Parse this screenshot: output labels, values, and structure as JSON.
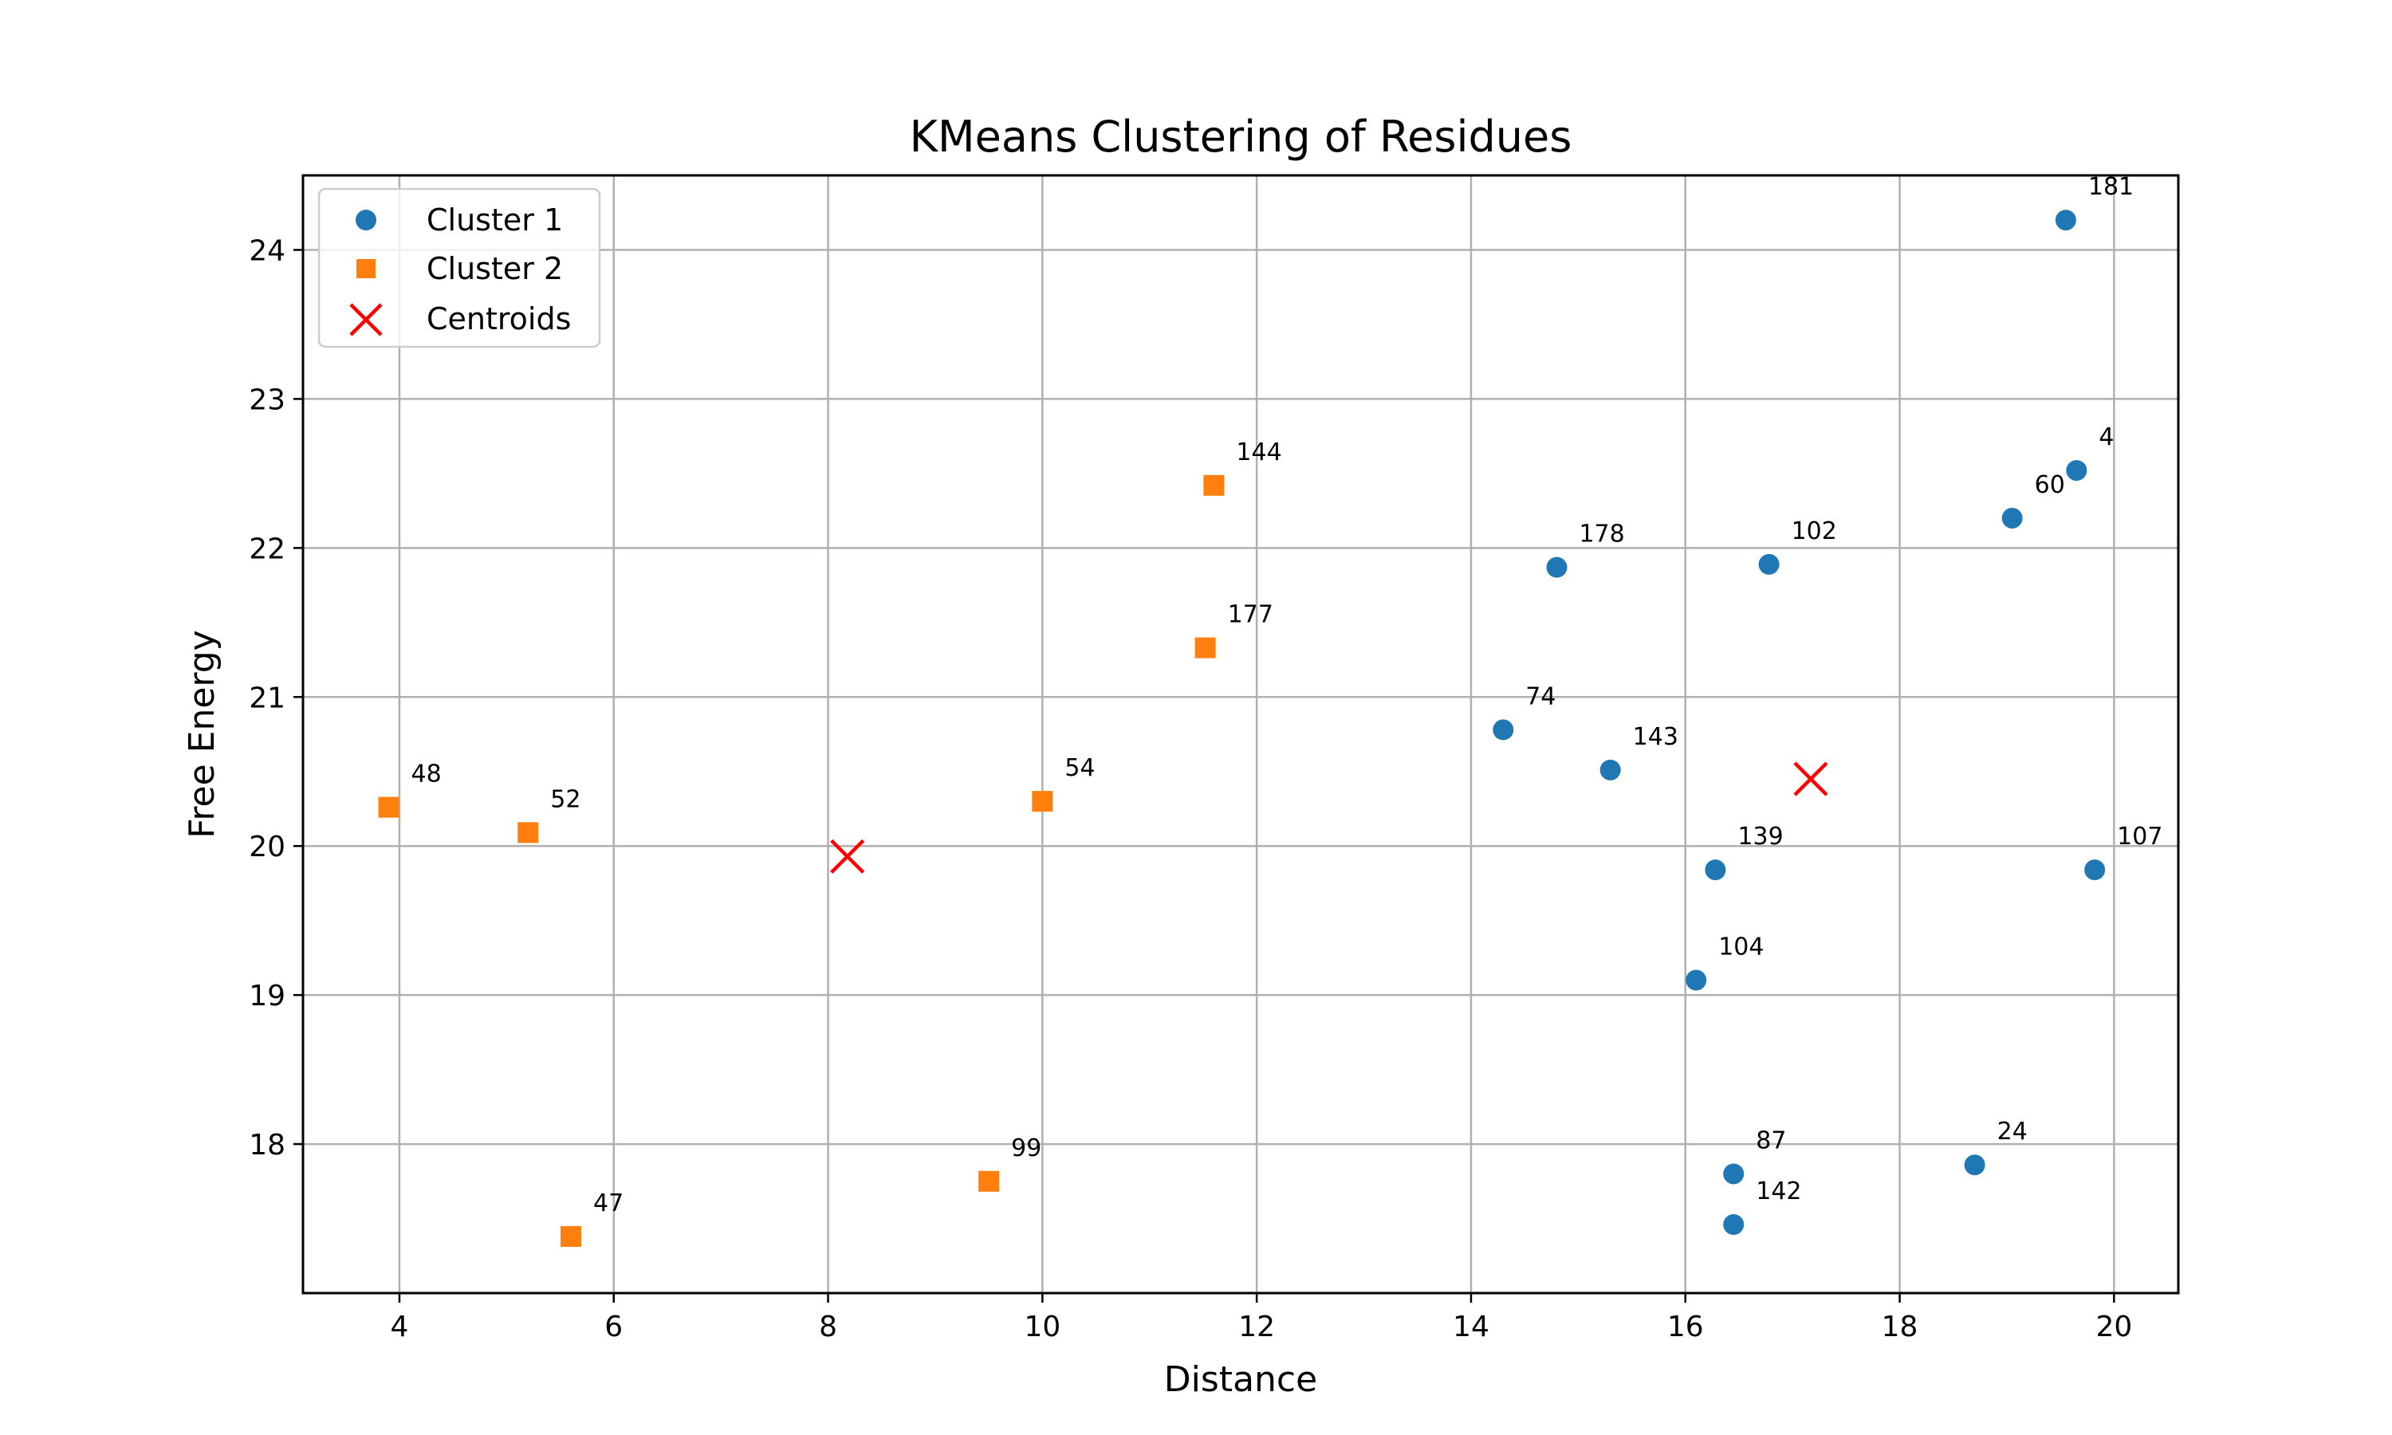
{
  "chart_data": {
    "type": "scatter",
    "title": "KMeans Clustering of Residues",
    "xlabel": "Distance",
    "ylabel": "Free Energy",
    "xlim": [
      3.1,
      20.6
    ],
    "ylim": [
      17.0,
      24.5
    ],
    "xticks": [
      "4",
      "6",
      "8",
      "10",
      "12",
      "14",
      "16",
      "18",
      "20"
    ],
    "yticks": [
      "18",
      "19",
      "20",
      "21",
      "22",
      "23",
      "24"
    ],
    "grid": true,
    "legend_position": "top-left",
    "series": [
      {
        "name": "Cluster 1",
        "marker": "circle",
        "color": "#1f77b4",
        "points": [
          {
            "x": 19.55,
            "y": 24.2,
            "label": "181"
          },
          {
            "x": 19.65,
            "y": 22.52,
            "label": "4"
          },
          {
            "x": 19.05,
            "y": 22.2,
            "label": "60"
          },
          {
            "x": 14.8,
            "y": 21.87,
            "label": "178"
          },
          {
            "x": 16.78,
            "y": 21.89,
            "label": "102"
          },
          {
            "x": 14.3,
            "y": 20.78,
            "label": "74"
          },
          {
            "x": 15.3,
            "y": 20.51,
            "label": "143"
          },
          {
            "x": 16.28,
            "y": 19.84,
            "label": "139"
          },
          {
            "x": 19.82,
            "y": 19.84,
            "label": "107"
          },
          {
            "x": 16.1,
            "y": 19.1,
            "label": "104"
          },
          {
            "x": 16.45,
            "y": 17.8,
            "label": "87"
          },
          {
            "x": 16.45,
            "y": 17.46,
            "label": "142"
          },
          {
            "x": 18.7,
            "y": 17.86,
            "label": "24"
          }
        ]
      },
      {
        "name": "Cluster 2",
        "marker": "square",
        "color": "#ff7f0e",
        "points": [
          {
            "x": 11.6,
            "y": 22.42,
            "label": "144"
          },
          {
            "x": 11.52,
            "y": 21.33,
            "label": "177"
          },
          {
            "x": 10.0,
            "y": 20.3,
            "label": "54"
          },
          {
            "x": 3.9,
            "y": 20.26,
            "label": "48"
          },
          {
            "x": 5.2,
            "y": 20.09,
            "label": "52"
          },
          {
            "x": 9.5,
            "y": 17.75,
            "label": "99"
          },
          {
            "x": 5.6,
            "y": 17.38,
            "label": "47"
          }
        ]
      },
      {
        "name": "Centroids",
        "marker": "x",
        "color": "#ff0000",
        "points": [
          {
            "x": 8.18,
            "y": 19.93
          },
          {
            "x": 17.17,
            "y": 20.45
          }
        ]
      }
    ]
  }
}
